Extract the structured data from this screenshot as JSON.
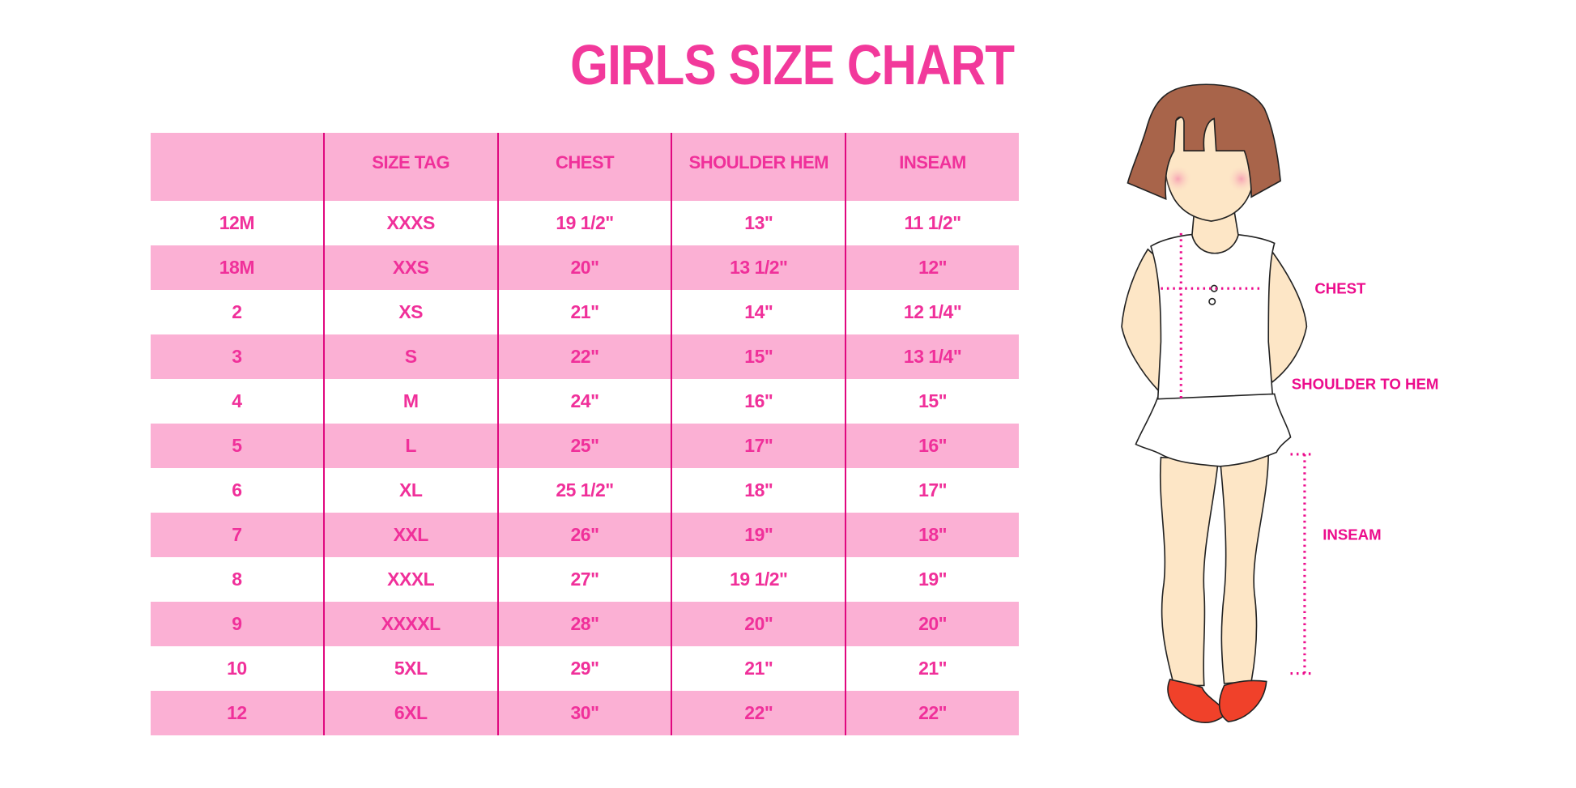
{
  "title": "GIRLS SIZE CHART",
  "colors": {
    "accent": "#f0309a",
    "band": "#fbb0d4",
    "divider": "#e0087f"
  },
  "table": {
    "headers": [
      "",
      "SIZE TAG",
      "CHEST",
      "SHOULDER HEM",
      "INSEAM"
    ],
    "rows": [
      [
        "12M",
        "XXXS",
        "19 1/2\"",
        "13\"",
        "11 1/2\""
      ],
      [
        "18M",
        "XXS",
        "20\"",
        "13 1/2\"",
        "12\""
      ],
      [
        "2",
        "XS",
        "21\"",
        "14\"",
        "12 1/4\""
      ],
      [
        "3",
        "S",
        "22\"",
        "15\"",
        "13 1/4\""
      ],
      [
        "4",
        "M",
        "24\"",
        "16\"",
        "15\""
      ],
      [
        "5",
        "L",
        "25\"",
        "17\"",
        "16\""
      ],
      [
        "6",
        "XL",
        "25 1/2\"",
        "18\"",
        "17\""
      ],
      [
        "7",
        "XXL",
        "26\"",
        "19\"",
        "18\""
      ],
      [
        "8",
        "XXXL",
        "27\"",
        "19 1/2\"",
        "19\""
      ],
      [
        "9",
        "XXXXL",
        "28\"",
        "20\"",
        "20\""
      ],
      [
        "10",
        "5XL",
        "29\"",
        "21\"",
        "21\""
      ],
      [
        "12",
        "6XL",
        "30\"",
        "22\"",
        "22\""
      ]
    ]
  },
  "figure": {
    "labels": {
      "chest": "CHEST",
      "shoulder_to_hem": "SHOULDER TO HEM",
      "inseam": "INSEAM"
    }
  }
}
